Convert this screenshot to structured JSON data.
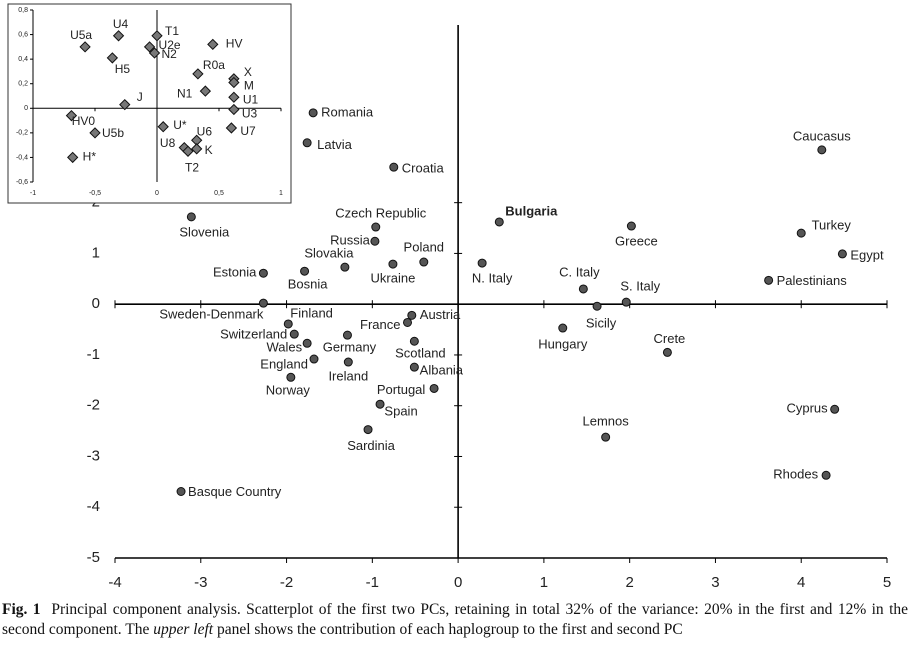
{
  "chart_data": [
    {
      "type": "scatter",
      "labels": [
        "Romania",
        "Latvia",
        "Croatia",
        "Caucasus",
        "Bulgaria",
        "Czech Republic",
        "Russia",
        "Slovenia",
        "Greece",
        "Turkey",
        "Egypt",
        "Palestinians",
        "Slovakia",
        "Poland",
        "Ukraine",
        "N. Italy",
        "Estonia",
        "Bosnia",
        "C. Italy",
        "S. Italy",
        "Sicily",
        "Sweden-Denmark",
        "Finland",
        "Austria",
        "France",
        "Switzerland",
        "Wales",
        "Germany",
        "Hungary",
        "Crete",
        "Scotland",
        "England",
        "Ireland",
        "Albania",
        "Norway",
        "Portugal",
        "Spain",
        "Cyprus",
        "Lemnos",
        "Sardinia",
        "Rhodes",
        "Basque Country"
      ],
      "x": [
        -1.69,
        -1.76,
        -0.75,
        4.24,
        0.48,
        -0.96,
        -0.97,
        -3.11,
        2.02,
        4.0,
        4.48,
        3.62,
        -1.32,
        -0.4,
        -0.76,
        0.28,
        -2.27,
        -1.79,
        1.46,
        1.96,
        1.62,
        -2.27,
        -1.98,
        -0.54,
        -0.59,
        -1.91,
        -1.76,
        -1.29,
        1.22,
        2.44,
        -0.51,
        -1.68,
        -1.28,
        -0.51,
        -1.95,
        -0.28,
        -0.91,
        4.39,
        1.72,
        -1.05,
        4.29,
        -3.23
      ],
      "values": [
        3.77,
        3.18,
        2.7,
        3.04,
        1.62,
        1.52,
        1.24,
        1.72,
        1.54,
        1.4,
        0.99,
        0.47,
        0.73,
        0.83,
        0.79,
        0.81,
        0.61,
        0.65,
        0.3,
        0.04,
        -0.04,
        0.02,
        -0.39,
        -0.22,
        -0.36,
        -0.59,
        -0.77,
        -0.61,
        -0.47,
        -0.95,
        -0.73,
        -1.08,
        -1.14,
        -1.24,
        -1.44,
        -1.66,
        -1.97,
        -2.07,
        -2.62,
        -2.47,
        -3.37,
        -3.69
      ],
      "color": "#555555",
      "xlim": [
        -4,
        5
      ],
      "ylim": [
        -5,
        5.5
      ],
      "xticks": [
        -4,
        -3,
        -2,
        -1,
        0,
        1,
        2,
        3,
        4,
        5
      ],
      "yticks": [
        -5,
        -4,
        -3,
        -2,
        -1,
        0,
        1,
        2
      ]
    },
    {
      "type": "scatter",
      "labels": [
        "U5a",
        "U4",
        "T1",
        "U2e",
        "N2",
        "HV",
        "H5",
        "R0a",
        "X",
        "M",
        "N1",
        "U1",
        "J",
        "U3",
        "HV0",
        "U*",
        "U5b",
        "U6",
        "U7",
        "U8",
        "K",
        "T2",
        "H*"
      ],
      "x": [
        -0.58,
        -0.31,
        0.0,
        -0.06,
        -0.02,
        0.45,
        -0.36,
        0.33,
        0.62,
        0.62,
        0.39,
        0.62,
        -0.26,
        0.62,
        -0.69,
        0.05,
        -0.5,
        0.32,
        0.6,
        0.22,
        0.32,
        0.25,
        -0.68
      ],
      "values": [
        0.5,
        0.59,
        0.59,
        0.5,
        0.45,
        0.52,
        0.41,
        0.28,
        0.24,
        0.21,
        0.14,
        0.09,
        0.03,
        -0.01,
        -0.06,
        -0.15,
        -0.2,
        -0.26,
        -0.16,
        -0.32,
        -0.33,
        -0.35,
        -0.4
      ],
      "color": "#777777",
      "xlim": [
        -1,
        1
      ],
      "ylim": [
        -0.6,
        0.8
      ],
      "xticks": [
        -1,
        {
          "value": -0.5,
          "label": "-0,5"
        },
        0,
        {
          "value": 0.5,
          "label": "0,5"
        },
        1
      ],
      "yticks": [
        {
          "value": -0.6,
          "label": "-0,6"
        },
        {
          "value": -0.4,
          "label": "-0,4"
        },
        {
          "value": -0.2,
          "label": "-0,2"
        },
        0,
        {
          "value": 0.2,
          "label": "0,2"
        },
        {
          "value": 0.4,
          "label": "0,4"
        },
        {
          "value": 0.6,
          "label": "0,6"
        },
        {
          "value": 0.8,
          "label": "0,8"
        }
      ]
    }
  ],
  "caption": {
    "label": "Fig. 1",
    "text_1": "Principal component analysis. Scatterplot of the first two PCs, retaining in total 32% of the variance: 20% in the first and 12% in the second component. The",
    "emphasis": "upper left",
    "text_2": "panel shows the contribution of each haplogroup to the first and second PC"
  }
}
